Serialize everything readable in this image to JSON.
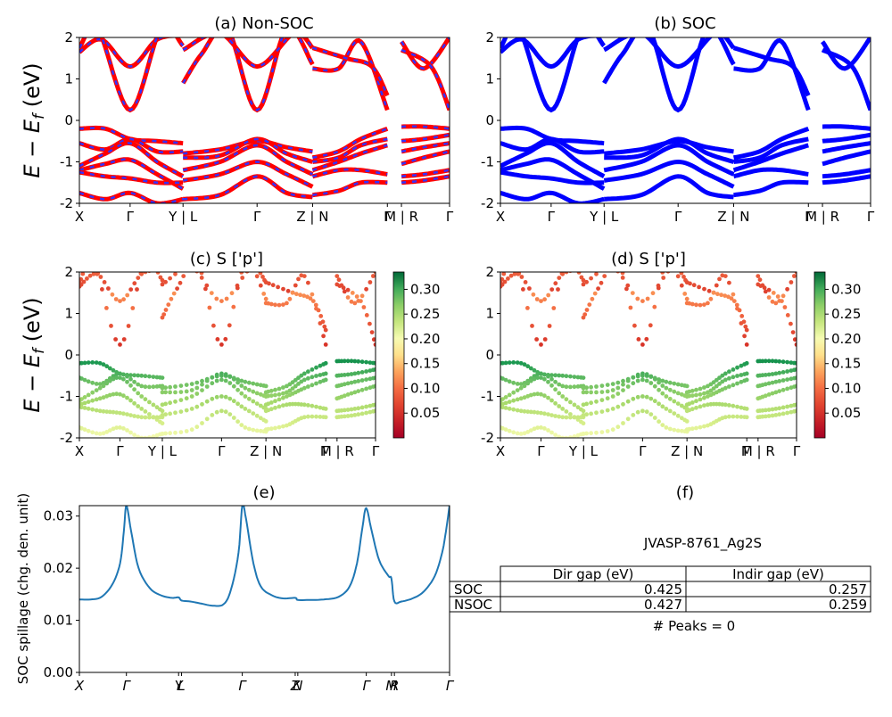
{
  "chart_data": [
    {
      "id": "a",
      "type": "line",
      "title": "(a) Non-SOC",
      "ylabel": "E − E_f (eV)",
      "ylim": [
        -2,
        2
      ],
      "yticks": [
        -2,
        -1,
        0,
        1,
        2
      ],
      "xtick_labels": [
        "X",
        "Γ",
        "Y | L",
        "Γ",
        "Z | N",
        "Γ",
        "M | R",
        "Γ"
      ],
      "xtick_positions": [
        0,
        0.137,
        0.28,
        0.48,
        0.63,
        0.832,
        0.87,
        1.0
      ],
      "line_color": "#ff0000",
      "dash_color": "#3333ff",
      "bands": [
        {
          "name": "cb1",
          "x": [
            0,
            0.06,
            0.137,
            0.21,
            0.28
          ],
          "y": [
            1.65,
            1.95,
            1.3,
            1.95,
            2.05
          ]
        },
        {
          "name": "cb2",
          "x": [
            0,
            0.05,
            0.137,
            0.22,
            0.28
          ],
          "y": [
            1.75,
            2.2,
            0.25,
            2.2,
            1.8
          ]
        },
        {
          "name": "cb3",
          "x": [
            0.28,
            0.33,
            0.4,
            0.48,
            0.56,
            0.63
          ],
          "y": [
            0.9,
            1.6,
            2.2,
            0.25,
            2.2,
            1.35
          ]
        },
        {
          "name": "cb4",
          "x": [
            0.28,
            0.38,
            0.48,
            0.58,
            0.63
          ],
          "y": [
            1.7,
            2.1,
            1.3,
            2.1,
            1.75
          ]
        },
        {
          "name": "cb5",
          "x": [
            0.63,
            0.7,
            0.76,
            0.832
          ],
          "y": [
            1.25,
            1.25,
            1.9,
            0.25
          ]
        },
        {
          "name": "cb6",
          "x": [
            0.63,
            0.72,
            0.79,
            0.832
          ],
          "y": [
            1.75,
            1.5,
            1.3,
            0.6
          ]
        },
        {
          "name": "cb7",
          "x": [
            0.87,
            0.93,
            1.0
          ],
          "y": [
            1.9,
            1.25,
            2.0
          ]
        },
        {
          "name": "cb8",
          "x": [
            0.87,
            0.95,
            1.0
          ],
          "y": [
            1.7,
            1.3,
            0.25
          ]
        },
        {
          "name": "vb1",
          "x": [
            0,
            0.07,
            0.137,
            0.21,
            0.28
          ],
          "y": [
            -0.2,
            -0.2,
            -0.45,
            -0.5,
            -0.55
          ]
        },
        {
          "name": "vb2",
          "x": [
            0,
            0.07,
            0.137,
            0.21,
            0.28
          ],
          "y": [
            -0.55,
            -0.7,
            -0.45,
            -0.75,
            -0.75
          ]
        },
        {
          "name": "vb3",
          "x": [
            0,
            0.07,
            0.137,
            0.21,
            0.28
          ],
          "y": [
            -1.1,
            -0.8,
            -0.55,
            -1.0,
            -1.35
          ]
        },
        {
          "name": "vb4",
          "x": [
            0,
            0.07,
            0.137,
            0.21,
            0.28
          ],
          "y": [
            -1.2,
            -1.05,
            -0.95,
            -1.3,
            -1.65
          ]
        },
        {
          "name": "vb5",
          "x": [
            0,
            0.07,
            0.137,
            0.21,
            0.28
          ],
          "y": [
            -1.25,
            -1.35,
            -1.4,
            -1.5,
            -1.5
          ]
        },
        {
          "name": "vb6",
          "x": [
            0,
            0.07,
            0.137,
            0.21,
            0.28
          ],
          "y": [
            -1.75,
            -1.9,
            -1.75,
            -2.0,
            -1.9
          ]
        },
        {
          "name": "vb7",
          "x": [
            0.28,
            0.38,
            0.48,
            0.56,
            0.63
          ],
          "y": [
            -0.8,
            -0.7,
            -0.5,
            -0.65,
            -0.75
          ]
        },
        {
          "name": "vb8",
          "x": [
            0.28,
            0.38,
            0.48,
            0.56,
            0.63
          ],
          "y": [
            -0.9,
            -0.85,
            -0.45,
            -0.8,
            -1.0
          ]
        },
        {
          "name": "vb9",
          "x": [
            0.28,
            0.38,
            0.48,
            0.56,
            0.63
          ],
          "y": [
            -1.2,
            -1.0,
            -0.6,
            -1.0,
            -1.3
          ]
        },
        {
          "name": "vb10",
          "x": [
            0.28,
            0.38,
            0.48,
            0.56,
            0.63
          ],
          "y": [
            -1.45,
            -1.3,
            -1.0,
            -1.3,
            -1.6
          ]
        },
        {
          "name": "vb11",
          "x": [
            0.28,
            0.38,
            0.48,
            0.56,
            0.63
          ],
          "y": [
            -1.9,
            -1.8,
            -1.35,
            -1.75,
            -1.85
          ]
        },
        {
          "name": "vb12",
          "x": [
            0.63,
            0.7,
            0.76,
            0.832
          ],
          "y": [
            -0.9,
            -0.75,
            -0.45,
            -0.2
          ]
        },
        {
          "name": "vb13",
          "x": [
            0.63,
            0.7,
            0.76,
            0.832
          ],
          "y": [
            -1.0,
            -0.9,
            -0.6,
            -0.45
          ]
        },
        {
          "name": "vb14",
          "x": [
            0.63,
            0.7,
            0.76,
            0.832
          ],
          "y": [
            -1.2,
            -1.0,
            -0.8,
            -0.6
          ]
        },
        {
          "name": "vb15",
          "x": [
            0.63,
            0.7,
            0.76,
            0.832
          ],
          "y": [
            -1.35,
            -1.2,
            -1.2,
            -1.3
          ]
        },
        {
          "name": "vb16",
          "x": [
            0.63,
            0.7,
            0.76,
            0.832
          ],
          "y": [
            -1.8,
            -1.7,
            -1.5,
            -1.5
          ]
        },
        {
          "name": "vb17",
          "x": [
            0.87,
            0.93,
            1.0
          ],
          "y": [
            -0.15,
            -0.15,
            -0.2
          ]
        },
        {
          "name": "vb18",
          "x": [
            0.87,
            0.93,
            1.0
          ],
          "y": [
            -0.5,
            -0.45,
            -0.35
          ]
        },
        {
          "name": "vb19",
          "x": [
            0.87,
            0.93,
            1.0
          ],
          "y": [
            -0.75,
            -0.65,
            -0.55
          ]
        },
        {
          "name": "vb20",
          "x": [
            0.87,
            0.93,
            1.0
          ],
          "y": [
            -1.05,
            -0.9,
            -0.75
          ]
        },
        {
          "name": "vb21",
          "x": [
            0.87,
            0.93,
            1.0
          ],
          "y": [
            -1.35,
            -1.3,
            -1.2
          ]
        },
        {
          "name": "vb22",
          "x": [
            0.87,
            0.93,
            1.0
          ],
          "y": [
            -1.5,
            -1.45,
            -1.35
          ]
        }
      ]
    },
    {
      "id": "b",
      "type": "line",
      "title": "(b) SOC",
      "ylim": [
        -2,
        2
      ],
      "yticks": [
        -2,
        -1,
        0,
        1,
        2
      ],
      "xtick_labels": [
        "X",
        "Γ",
        "Y | L",
        "Γ",
        "Z | N",
        "Γ",
        "M | R",
        "Γ"
      ],
      "xtick_positions": [
        0,
        0.137,
        0.28,
        0.48,
        0.63,
        0.832,
        0.87,
        1.0
      ],
      "line_color": "#0000ff",
      "same_bands_as": "a"
    },
    {
      "id": "c",
      "type": "scatter",
      "title": "(c)  S ['p']",
      "ylabel": "E − E_f (eV)",
      "ylim": [
        -2,
        2
      ],
      "yticks": [
        -2,
        -1,
        0,
        1,
        2
      ],
      "xtick_labels": [
        "X",
        "Γ",
        "Y | L",
        "Γ",
        "Z | N",
        "Γ",
        "M | R",
        "Γ"
      ],
      "xtick_positions": [
        0,
        0.137,
        0.28,
        0.48,
        0.63,
        0.832,
        0.87,
        1.0
      ],
      "colormap": "RdYlGn",
      "colorbar_range": [
        0.0,
        0.335
      ],
      "colorbar_ticks": [
        "0.05",
        "0.10",
        "0.15",
        "0.20",
        "0.25",
        "0.30"
      ],
      "weights_note": "conduction bands ~0.05-0.15 (red/orange), valence bands ~0.2-0.33 (green)",
      "same_bands_as": "a"
    },
    {
      "id": "d",
      "type": "scatter",
      "title": "(d) S ['p']",
      "ylim": [
        -2,
        2
      ],
      "yticks": [
        -2,
        -1,
        0,
        1,
        2
      ],
      "xtick_labels": [
        "X",
        "Γ",
        "Y | L",
        "Γ",
        "Z | N",
        "Γ",
        "M | R",
        "Γ"
      ],
      "xtick_positions": [
        0,
        0.137,
        0.28,
        0.48,
        0.63,
        0.832,
        0.87,
        1.0
      ],
      "colormap": "RdYlGn",
      "colorbar_range": [
        0.0,
        0.335
      ],
      "colorbar_ticks": [
        "0.05",
        "0.10",
        "0.15",
        "0.20",
        "0.25",
        "0.30"
      ],
      "same_bands_as": "a"
    },
    {
      "id": "e",
      "type": "line",
      "title": "(e)",
      "ylabel": "SOC spillage (chg. den. unit)",
      "ylim": [
        0,
        0.032
      ],
      "yticks": [
        "0.00",
        "0.01",
        "0.02",
        "0.03"
      ],
      "xtick_labels": [
        "X",
        "Γ",
        "Y",
        "L",
        "Γ",
        "Z",
        "N",
        "Γ",
        "M",
        "R",
        "Γ"
      ],
      "xtick_positions": [
        0,
        0.127,
        0.268,
        0.276,
        0.44,
        0.583,
        0.59,
        0.775,
        0.843,
        0.851,
        1.0
      ],
      "line_color": "#1f77b4",
      "x": [
        0,
        0.03,
        0.06,
        0.09,
        0.11,
        0.12,
        0.127,
        0.14,
        0.16,
        0.19,
        0.22,
        0.25,
        0.268,
        0.276,
        0.3,
        0.33,
        0.36,
        0.39,
        0.41,
        0.43,
        0.44,
        0.45,
        0.47,
        0.49,
        0.52,
        0.55,
        0.583,
        0.59,
        0.62,
        0.66,
        0.7,
        0.73,
        0.75,
        0.765,
        0.775,
        0.79,
        0.81,
        0.835,
        0.843,
        0.851,
        0.87,
        0.9,
        0.93,
        0.96,
        0.98,
        0.99,
        1.0
      ],
      "y": [
        0.014,
        0.014,
        0.0145,
        0.017,
        0.021,
        0.027,
        0.032,
        0.027,
        0.02,
        0.0162,
        0.0148,
        0.0143,
        0.0144,
        0.0138,
        0.0136,
        0.0132,
        0.0128,
        0.0131,
        0.016,
        0.023,
        0.032,
        0.0295,
        0.021,
        0.0165,
        0.0148,
        0.0142,
        0.0143,
        0.0139,
        0.0139,
        0.014,
        0.0145,
        0.0165,
        0.021,
        0.028,
        0.0315,
        0.027,
        0.0215,
        0.0185,
        0.018,
        0.0136,
        0.0136,
        0.0142,
        0.0155,
        0.0185,
        0.023,
        0.027,
        0.032
      ]
    },
    {
      "id": "f",
      "type": "table",
      "title": "(f)",
      "subtitle": "JVASP-8761_Ag2S",
      "columns": [
        "Dir gap (eV)",
        "Indir gap (eV)"
      ],
      "rows": [
        {
          "label": "SOC",
          "values": [
            "0.425",
            "0.257"
          ]
        },
        {
          "label": "NSOC",
          "values": [
            "0.427",
            "0.259"
          ]
        }
      ],
      "footer": "# Peaks = 0"
    }
  ]
}
